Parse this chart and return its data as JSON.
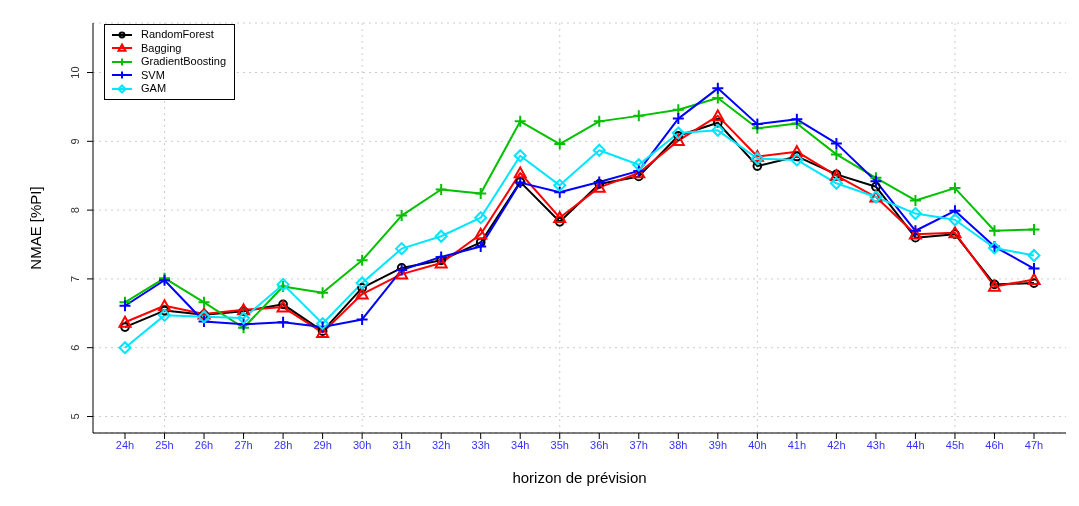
{
  "chart_data": {
    "type": "line",
    "xlabel": "horizon de prévision",
    "ylabel": "NMAE [%PI]",
    "categories": [
      "24h",
      "25h",
      "26h",
      "27h",
      "28h",
      "29h",
      "30h",
      "31h",
      "32h",
      "33h",
      "34h",
      "35h",
      "36h",
      "37h",
      "38h",
      "39h",
      "40h",
      "41h",
      "42h",
      "43h",
      "44h",
      "45h",
      "46h",
      "47h"
    ],
    "ylim": [
      4.76,
      10.72
    ],
    "yticks": [
      5,
      6,
      7,
      8,
      9,
      10
    ],
    "grid": true,
    "legend": "top left",
    "line_style": "solid",
    "series": [
      {
        "name": "RandomForest",
        "color": "#000000",
        "marker": "circle",
        "values": [
          6.3,
          6.54,
          6.48,
          6.53,
          6.63,
          6.24,
          6.87,
          7.16,
          7.27,
          7.53,
          8.41,
          7.83,
          8.38,
          8.49,
          9.08,
          9.27,
          8.64,
          8.78,
          8.52,
          8.34,
          7.6,
          7.65,
          6.92,
          6.94
        ]
      },
      {
        "name": "Bagging",
        "color": "#ff0000",
        "marker": "triangle",
        "values": [
          6.37,
          6.61,
          6.49,
          6.55,
          6.59,
          6.22,
          6.78,
          7.07,
          7.23,
          7.65,
          8.54,
          7.89,
          8.33,
          8.54,
          9.01,
          9.37,
          8.78,
          8.85,
          8.5,
          8.19,
          7.65,
          7.67,
          6.89,
          6.99
        ]
      },
      {
        "name": "GradientBoosting",
        "color": "#00c000",
        "marker": "cross",
        "values": [
          6.66,
          7.01,
          6.66,
          6.29,
          6.89,
          6.8,
          7.27,
          7.92,
          8.3,
          8.24,
          9.29,
          8.96,
          9.29,
          9.37,
          9.46,
          9.63,
          9.19,
          9.26,
          8.81,
          8.47,
          8.14,
          8.32,
          7.7,
          7.72
        ]
      },
      {
        "name": "SVM",
        "color": "#0000ff",
        "marker": "cross",
        "values": [
          6.61,
          6.98,
          6.38,
          6.34,
          6.37,
          6.3,
          6.41,
          7.13,
          7.32,
          7.47,
          8.4,
          8.26,
          8.41,
          8.57,
          9.33,
          9.77,
          9.25,
          9.32,
          8.97,
          8.42,
          7.7,
          7.99,
          7.47,
          7.15
        ]
      },
      {
        "name": "GAM",
        "color": "#00e5ff",
        "marker": "diamond",
        "values": [
          6.0,
          6.47,
          6.45,
          6.43,
          6.92,
          6.35,
          6.94,
          7.44,
          7.62,
          7.89,
          8.79,
          8.36,
          8.87,
          8.66,
          9.12,
          9.16,
          8.75,
          8.73,
          8.39,
          8.19,
          7.95,
          7.86,
          7.45,
          7.34
        ]
      }
    ]
  }
}
